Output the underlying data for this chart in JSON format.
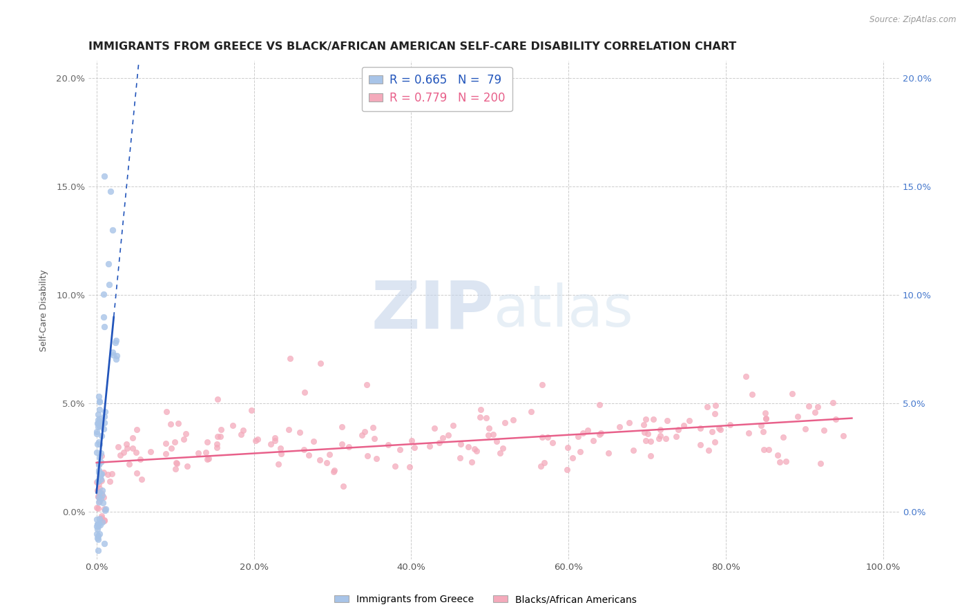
{
  "title": "IMMIGRANTS FROM GREECE VS BLACK/AFRICAN AMERICAN SELF-CARE DISABILITY CORRELATION CHART",
  "source": "Source: ZipAtlas.com",
  "ylabel": "Self-Care Disability",
  "xlabel": "",
  "blue_R": 0.665,
  "blue_N": 79,
  "pink_R": 0.779,
  "pink_N": 200,
  "blue_color": "#A8C4E8",
  "pink_color": "#F4AABB",
  "blue_line_color": "#2255BB",
  "pink_line_color": "#E8608A",
  "right_tick_color": "#4477CC",
  "left_tick_color": "#666666",
  "watermark_zip_color": "#C8D8EE",
  "watermark_atlas_color": "#D8E4F0",
  "legend1": "Immigrants from Greece",
  "legend2": "Blacks/African Americans",
  "xmin": -0.01,
  "xmax": 1.02,
  "ymin": -0.022,
  "ymax": 0.208,
  "yticks": [
    0.0,
    0.05,
    0.1,
    0.15,
    0.2
  ],
  "ytick_labels": [
    "0.0%",
    "5.0%",
    "10.0%",
    "15.0%",
    "20.0%"
  ],
  "xticks": [
    0.0,
    0.2,
    0.4,
    0.6,
    0.8,
    1.0
  ],
  "xtick_labels": [
    "0.0%",
    "20.0%",
    "40.0%",
    "60.0%",
    "80.0%",
    "100.0%"
  ],
  "title_fontsize": 11.5,
  "label_fontsize": 9,
  "tick_fontsize": 9.5
}
